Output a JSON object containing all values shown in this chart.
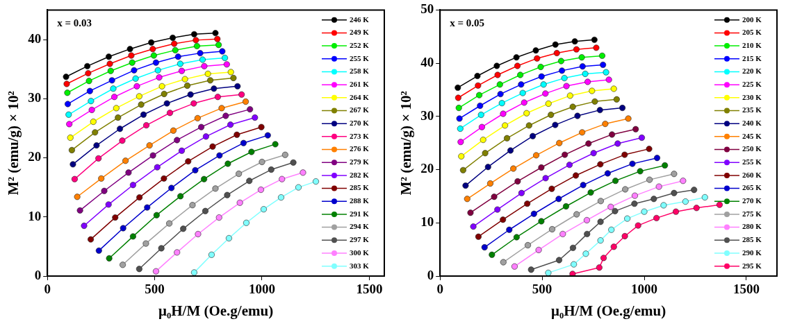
{
  "chart_data": [
    {
      "type": "line",
      "xlabel": "μ₀H/M (Oe.g/emu)",
      "ylabel": "M² (emu/g) × 10²",
      "annotations": [
        "x = 0.03"
      ],
      "xlim": [
        0,
        1570
      ],
      "ylim": [
        0,
        45
      ],
      "xticks": [
        0,
        500,
        1000,
        1500
      ],
      "yticks": [
        0,
        10,
        20,
        30,
        40
      ],
      "grid": false,
      "legend": "top right",
      "marker": "circle",
      "line_style": "solid",
      "series": [
        {
          "name": "246 K",
          "color": "#000000",
          "x": [
            87,
            186,
            286,
            385,
            484,
            584,
            684,
            783
          ],
          "values": [
            33.7,
            35.5,
            37.1,
            38.4,
            39.5,
            40.3,
            40.9,
            41.1
          ]
        },
        {
          "name": "249 K",
          "color": "#ff0000",
          "x": [
            90,
            190,
            291,
            391,
            491,
            591,
            692,
            792
          ],
          "values": [
            32.5,
            34.3,
            35.9,
            37.3,
            38.4,
            39.3,
            39.9,
            40.1
          ]
        },
        {
          "name": "252 K",
          "color": "#00ee00",
          "x": [
            93,
            194,
            295,
            395,
            496,
            596,
            697,
            798
          ],
          "values": [
            31.0,
            33.0,
            34.7,
            36.1,
            37.3,
            38.2,
            38.9,
            39.1
          ]
        },
        {
          "name": "255 K",
          "color": "#0000ff",
          "x": [
            95,
            198,
            301,
            404,
            506,
            609,
            712,
            815
          ],
          "values": [
            29.1,
            31.3,
            33.1,
            34.8,
            36.1,
            37.1,
            37.7,
            38.0
          ]
        },
        {
          "name": "258 K",
          "color": "#00ffff",
          "x": [
            99,
            203,
            307,
            411,
            515,
            619,
            723,
            827
          ],
          "values": [
            27.3,
            29.6,
            31.7,
            33.4,
            34.8,
            35.9,
            36.6,
            36.9
          ]
        },
        {
          "name": "261 K",
          "color": "#ff00ff",
          "x": [
            102,
            207,
            312,
            417,
            521,
            626,
            731,
            836
          ],
          "values": [
            25.7,
            28.1,
            30.3,
            32.1,
            33.6,
            34.7,
            35.5,
            35.8
          ]
        },
        {
          "name": "264 K",
          "color": "#ffff00",
          "x": [
            107,
            214,
            321,
            428,
            534,
            641,
            748,
            855
          ],
          "values": [
            23.4,
            26.1,
            28.4,
            30.4,
            32.1,
            33.3,
            34.2,
            34.5
          ]
        },
        {
          "name": "267 K",
          "color": "#808000",
          "x": [
            114,
            222,
            329,
            437,
            544,
            652,
            759,
            867
          ],
          "values": [
            21.3,
            24.3,
            26.8,
            29.0,
            30.8,
            32.2,
            33.1,
            33.5
          ]
        },
        {
          "name": "270 K",
          "color": "#000080",
          "x": [
            119,
            229,
            338,
            448,
            557,
            667,
            776,
            886
          ],
          "values": [
            18.9,
            22.1,
            24.9,
            27.3,
            29.2,
            30.7,
            31.7,
            32.1
          ]
        },
        {
          "name": "273 K",
          "color": "#ff0080",
          "x": [
            127,
            238,
            349,
            461,
            571,
            682,
            794,
            905
          ],
          "values": [
            16.4,
            19.9,
            22.9,
            25.5,
            27.6,
            29.2,
            30.3,
            30.7
          ]
        },
        {
          "name": "276 K",
          "color": "#ff8000",
          "x": [
            139,
            251,
            364,
            476,
            587,
            700,
            812,
            924
          ],
          "values": [
            13.4,
            16.5,
            19.5,
            22.1,
            24.6,
            26.7,
            28.4,
            29.5
          ]
        },
        {
          "name": "279 K",
          "color": "#800080",
          "x": [
            152,
            265,
            378,
            492,
            604,
            717,
            831,
            944
          ],
          "values": [
            11.1,
            14.4,
            17.5,
            20.4,
            23.0,
            25.2,
            27.1,
            28.2
          ]
        },
        {
          "name": "282 K",
          "color": "#8000ff",
          "x": [
            171,
            285,
            399,
            512,
            626,
            739,
            853,
            967
          ],
          "values": [
            8.5,
            12.1,
            15.4,
            18.4,
            21.2,
            23.6,
            25.6,
            26.8
          ]
        },
        {
          "name": "285 K",
          "color": "#800000",
          "x": [
            202,
            316,
            429,
            543,
            656,
            770,
            883,
            997
          ],
          "values": [
            6.2,
            9.9,
            13.3,
            16.5,
            19.4,
            21.9,
            23.9,
            25.2
          ]
        },
        {
          "name": "288 K",
          "color": "#0000cc",
          "x": [
            240,
            353,
            465,
            578,
            689,
            802,
            914,
            1027
          ],
          "values": [
            4.3,
            8.1,
            11.6,
            14.9,
            17.9,
            20.4,
            22.5,
            23.8
          ]
        },
        {
          "name": "291 K",
          "color": "#008000",
          "x": [
            288,
            399,
            509,
            620,
            730,
            841,
            951,
            1062
          ],
          "values": [
            3.0,
            6.7,
            10.3,
            13.5,
            16.4,
            19.0,
            21.0,
            22.3
          ]
        },
        {
          "name": "294 K",
          "color": "#a0a0a0",
          "x": [
            351,
            459,
            568,
            676,
            783,
            892,
            1000,
            1108
          ],
          "values": [
            1.9,
            5.5,
            8.9,
            12.0,
            14.8,
            17.3,
            19.3,
            20.5
          ]
        },
        {
          "name": "297 K",
          "color": "#505050",
          "x": [
            428,
            531,
            633,
            736,
            838,
            941,
            1043,
            1146
          ],
          "values": [
            1.2,
            4.7,
            8.0,
            11.0,
            13.7,
            16.1,
            18.0,
            19.2
          ]
        },
        {
          "name": "300 K",
          "color": "#ff80ff",
          "x": [
            506,
            604,
            702,
            800,
            897,
            995,
            1093,
            1191
          ],
          "values": [
            0.8,
            4.0,
            7.1,
            9.9,
            12.4,
            14.6,
            16.4,
            17.5
          ]
        },
        {
          "name": "303 K",
          "color": "#80ffff",
          "x": [
            684,
            765,
            846,
            927,
            1008,
            1089,
            1170,
            1251
          ],
          "values": [
            0.6,
            3.6,
            6.4,
            9.0,
            11.3,
            13.3,
            15.0,
            16.0
          ]
        }
      ]
    },
    {
      "type": "line",
      "xlabel": "μ₀H/M (Oe.g/emu)",
      "ylabel": "M² (emu/g) × 10²",
      "annotations": [
        "x = 0.05"
      ],
      "xlim": [
        0,
        1650
      ],
      "ylim": [
        0,
        50
      ],
      "xticks": [
        0,
        500,
        1000,
        1500
      ],
      "yticks": [
        0,
        10,
        20,
        30,
        40,
        50
      ],
      "grid": false,
      "legend": "top right",
      "marker": "circle",
      "line_style": "solid",
      "series": [
        {
          "name": "200 K",
          "color": "#000000",
          "x": [
            87,
            183,
            278,
            374,
            469,
            565,
            660,
            756
          ],
          "values": [
            35.4,
            37.6,
            39.5,
            41.1,
            42.4,
            43.5,
            44.1,
            44.4
          ]
        },
        {
          "name": "205 K",
          "color": "#ff0000",
          "x": [
            89,
            186,
            282,
            379,
            475,
            572,
            668,
            765
          ],
          "values": [
            33.5,
            35.8,
            37.8,
            39.5,
            40.9,
            41.9,
            42.6,
            42.9
          ]
        },
        {
          "name": "210 K",
          "color": "#00ee00",
          "x": [
            92,
            192,
            293,
            393,
            493,
            593,
            694,
            794
          ],
          "values": [
            31.6,
            34.0,
            36.0,
            37.8,
            39.3,
            40.4,
            41.1,
            41.4
          ]
        },
        {
          "name": "215 K",
          "color": "#0000ff",
          "x": [
            95,
            196,
            296,
            397,
            497,
            597,
            698,
            798
          ],
          "values": [
            29.6,
            32.0,
            34.2,
            36.0,
            37.5,
            38.6,
            39.4,
            39.7
          ]
        },
        {
          "name": "220 K",
          "color": "#00ffff",
          "x": [
            99,
            201,
            303,
            405,
            507,
            609,
            711,
            813
          ],
          "values": [
            27.7,
            30.3,
            32.5,
            34.4,
            36.0,
            37.2,
            38.0,
            38.3
          ]
        },
        {
          "name": "225 K",
          "color": "#ff00ff",
          "x": [
            101,
            205,
            309,
            412,
            516,
            619,
            723,
            827
          ],
          "values": [
            25.2,
            28.0,
            30.5,
            32.6,
            34.3,
            35.7,
            36.5,
            36.9
          ]
        },
        {
          "name": "230 K",
          "color": "#ffff00",
          "x": [
            104,
            211,
            318,
            424,
            531,
            637,
            744,
            851
          ],
          "values": [
            22.5,
            25.6,
            28.3,
            30.6,
            32.4,
            33.9,
            34.8,
            35.2
          ]
        },
        {
          "name": "235 K",
          "color": "#808000",
          "x": [
            113,
            221,
            328,
            436,
            543,
            650,
            758,
            865
          ],
          "values": [
            19.9,
            23.1,
            25.9,
            28.3,
            30.3,
            31.8,
            32.8,
            33.2
          ]
        },
        {
          "name": "240 K",
          "color": "#000080",
          "x": [
            125,
            235,
            345,
            454,
            564,
            673,
            783,
            893
          ],
          "values": [
            17.0,
            20.5,
            23.6,
            26.3,
            28.4,
            30.1,
            31.2,
            31.6
          ]
        },
        {
          "name": "245 K",
          "color": "#ff8000",
          "x": [
            133,
            246,
            359,
            471,
            584,
            696,
            809,
            922
          ],
          "values": [
            14.5,
            17.4,
            20.2,
            22.7,
            25.0,
            27.0,
            28.6,
            29.6
          ]
        },
        {
          "name": "250 K",
          "color": "#800040",
          "x": [
            149,
            265,
            380,
            496,
            611,
            727,
            842,
            958
          ],
          "values": [
            11.9,
            14.9,
            17.8,
            20.4,
            22.8,
            24.9,
            26.6,
            27.6
          ]
        },
        {
          "name": "255 K",
          "color": "#8000ff",
          "x": [
            163,
            281,
            399,
            517,
            634,
            752,
            870,
            988
          ],
          "values": [
            9.3,
            12.5,
            15.6,
            18.4,
            20.9,
            23.1,
            24.9,
            26.0
          ]
        },
        {
          "name": "260 K",
          "color": "#800000",
          "x": [
            188,
            308,
            427,
            547,
            665,
            785,
            904,
            1024
          ],
          "values": [
            7.4,
            10.6,
            13.6,
            16.4,
            18.9,
            21.0,
            22.8,
            23.9
          ]
        },
        {
          "name": "265 K",
          "color": "#0000cc",
          "x": [
            218,
            339,
            460,
            581,
            701,
            821,
            942,
            1063
          ],
          "values": [
            5.4,
            8.7,
            11.7,
            14.5,
            17.1,
            19.3,
            21.1,
            22.2
          ]
        },
        {
          "name": "270 K",
          "color": "#008000",
          "x": [
            254,
            375,
            496,
            617,
            738,
            859,
            980,
            1101
          ],
          "values": [
            4.0,
            7.3,
            10.3,
            13.1,
            15.7,
            17.9,
            19.7,
            20.8
          ]
        },
        {
          "name": "275 K",
          "color": "#a0a0a0",
          "x": [
            310,
            430,
            549,
            669,
            787,
            907,
            1026,
            1146
          ],
          "values": [
            2.6,
            5.8,
            8.8,
            11.6,
            14.1,
            16.3,
            18.1,
            19.2
          ]
        },
        {
          "name": "280 K",
          "color": "#ff80ff",
          "x": [
            365,
            483,
            601,
            719,
            836,
            954,
            1072,
            1190
          ],
          "values": [
            1.8,
            4.9,
            7.9,
            10.5,
            13.0,
            15.1,
            16.8,
            17.9
          ]
        },
        {
          "name": "285 K",
          "color": "#505050",
          "x": [
            446,
            583,
            651,
            720,
            786,
            857,
            952,
            1047,
            1146,
            1244
          ],
          "values": [
            1.2,
            3.0,
            5.3,
            7.9,
            10.2,
            12.2,
            13.6,
            14.5,
            15.6,
            16.2
          ]
        },
        {
          "name": "290 K",
          "color": "#80ffff",
          "x": [
            530,
            655,
            714,
            786,
            839,
            917,
            1000,
            1095,
            1202,
            1297
          ],
          "values": [
            0.6,
            2.2,
            4.2,
            6.7,
            8.7,
            10.8,
            12.1,
            13.3,
            14.0,
            14.8
          ]
        },
        {
          "name": "295 K",
          "color": "#ff0066",
          "x": [
            649,
            780,
            801,
            851,
            905,
            970,
            1060,
            1155,
            1256,
            1369
          ],
          "values": [
            0.4,
            1.6,
            3.4,
            5.5,
            7.5,
            9.5,
            10.9,
            12.1,
            12.8,
            13.4
          ]
        }
      ]
    }
  ]
}
